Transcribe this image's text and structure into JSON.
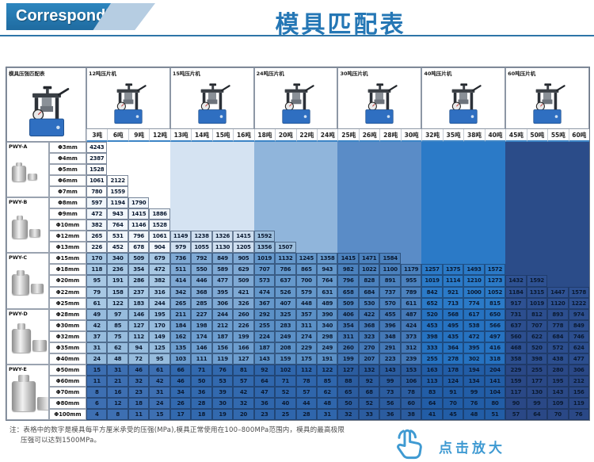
{
  "header": {
    "brand_label": "Corresponding",
    "title": "模具匹配表"
  },
  "chart_data": {
    "type": "table",
    "title": "模具匹配表",
    "unit": "MPa",
    "corner_title": "模具压强匹配表",
    "machines": [
      {
        "name": "12吨压片机",
        "tons": [
          "3吨",
          "6吨",
          "9吨",
          "12吨"
        ]
      },
      {
        "name": "15吨压片机",
        "tons": [
          "13吨",
          "14吨",
          "15吨",
          "16吨"
        ]
      },
      {
        "name": "24吨压片机",
        "tons": [
          "18吨",
          "20吨",
          "22吨",
          "24吨"
        ]
      },
      {
        "name": "30吨压片机",
        "tons": [
          "25吨",
          "26吨",
          "28吨",
          "30吨"
        ]
      },
      {
        "name": "40吨压片机",
        "tons": [
          "32吨",
          "35吨",
          "38吨",
          "40吨"
        ]
      },
      {
        "name": "60吨压片机",
        "tons": [
          "45吨",
          "50吨",
          "55吨",
          "60吨"
        ]
      }
    ],
    "sections": [
      {
        "label": "PWY-A",
        "rows": [
          {
            "dia": "Φ3mm",
            "values": [
              4243
            ]
          },
          {
            "dia": "Φ4mm",
            "values": [
              2387
            ]
          },
          {
            "dia": "Φ5mm",
            "values": [
              1528
            ]
          },
          {
            "dia": "Φ6mm",
            "values": [
              1061,
              2122
            ]
          },
          {
            "dia": "Φ7mm",
            "values": [
              780,
              1559
            ]
          }
        ]
      },
      {
        "label": "PWY-B",
        "rows": [
          {
            "dia": "Φ8mm",
            "values": [
              597,
              1194,
              1790
            ]
          },
          {
            "dia": "Φ9mm",
            "values": [
              472,
              943,
              1415,
              1886
            ]
          },
          {
            "dia": "Φ10mm",
            "values": [
              382,
              764,
              1146,
              1528
            ]
          },
          {
            "dia": "Φ12mm",
            "values": [
              265,
              531,
              796,
              1061,
              1149,
              1238,
              1326,
              1415,
              1592
            ]
          },
          {
            "dia": "Φ13mm",
            "values": [
              226,
              452,
              678,
              904,
              979,
              1055,
              1130,
              1205,
              1356,
              1507
            ]
          }
        ]
      },
      {
        "label": "PWY-C",
        "rows": [
          {
            "dia": "Φ15mm",
            "values": [
              170,
              340,
              509,
              679,
              736,
              792,
              849,
              905,
              1019,
              1132,
              1245,
              1358,
              1415,
              1471,
              1584
            ]
          },
          {
            "dia": "Φ18mm",
            "values": [
              118,
              236,
              354,
              472,
              511,
              550,
              589,
              629,
              707,
              786,
              865,
              943,
              982,
              1022,
              1100,
              1179,
              1257,
              1375,
              1493,
              1572
            ]
          },
          {
            "dia": "Φ20mm",
            "values": [
              95,
              191,
              286,
              382,
              414,
              446,
              477,
              509,
              573,
              637,
              700,
              764,
              796,
              828,
              891,
              955,
              1019,
              1114,
              1210,
              1273,
              1432,
              1592
            ]
          },
          {
            "dia": "Φ22mm",
            "values": [
              79,
              158,
              237,
              316,
              342,
              368,
              395,
              421,
              474,
              526,
              579,
              631,
              658,
              684,
              737,
              789,
              842,
              921,
              1000,
              1052,
              1184,
              1315,
              1447,
              1578
            ]
          },
          {
            "dia": "Φ25mm",
            "values": [
              61,
              122,
              183,
              244,
              265,
              285,
              306,
              326,
              367,
              407,
              448,
              489,
              509,
              530,
              570,
              611,
              652,
              713,
              774,
              815,
              917,
              1019,
              1120,
              1222
            ]
          }
        ]
      },
      {
        "label": "PWY-D",
        "rows": [
          {
            "dia": "Φ28mm",
            "values": [
              49,
              97,
              146,
              195,
              211,
              227,
              244,
              260,
              292,
              325,
              357,
              390,
              406,
              422,
              455,
              487,
              520,
              568,
              617,
              650,
              731,
              812,
              893,
              974
            ]
          },
          {
            "dia": "Φ30mm",
            "values": [
              42,
              85,
              127,
              170,
              184,
              198,
              212,
              226,
              255,
              283,
              311,
              340,
              354,
              368,
              396,
              424,
              453,
              495,
              538,
              566,
              637,
              707,
              778,
              849
            ]
          },
          {
            "dia": "Φ32mm",
            "values": [
              37,
              75,
              112,
              149,
              162,
              174,
              187,
              199,
              224,
              249,
              274,
              298,
              311,
              323,
              348,
              373,
              398,
              435,
              472,
              497,
              560,
              622,
              684,
              746
            ]
          },
          {
            "dia": "Φ35mm",
            "values": [
              31,
              62,
              94,
              125,
              135,
              146,
              156,
              166,
              187,
              208,
              229,
              249,
              260,
              270,
              291,
              312,
              333,
              364,
              395,
              416,
              468,
              520,
              572,
              624
            ]
          },
          {
            "dia": "Φ40mm",
            "values": [
              24,
              48,
              72,
              95,
              103,
              111,
              119,
              127,
              143,
              159,
              175,
              191,
              199,
              207,
              223,
              239,
              255,
              278,
              302,
              318,
              358,
              398,
              438,
              477
            ]
          }
        ]
      },
      {
        "label": "PWY-E",
        "rows": [
          {
            "dia": "Φ50mm",
            "values": [
              15,
              31,
              46,
              61,
              66,
              71,
              76,
              81,
              92,
              102,
              112,
              122,
              127,
              132,
              143,
              153,
              163,
              178,
              194,
              204,
              229,
              255,
              280,
              306
            ]
          },
          {
            "dia": "Φ60mm",
            "values": [
              11,
              21,
              32,
              42,
              46,
              50,
              53,
              57,
              64,
              71,
              78,
              85,
              88,
              92,
              99,
              106,
              113,
              124,
              134,
              141,
              159,
              177,
              195,
              212
            ]
          },
          {
            "dia": "Φ70mm",
            "values": [
              8,
              16,
              23,
              31,
              34,
              36,
              39,
              42,
              47,
              52,
              57,
              62,
              65,
              68,
              73,
              78,
              83,
              91,
              99,
              104,
              117,
              130,
              143,
              156
            ]
          },
          {
            "dia": "Φ80mm",
            "values": [
              6,
              12,
              18,
              24,
              26,
              28,
              30,
              32,
              36,
              40,
              44,
              48,
              50,
              52,
              56,
              60,
              64,
              70,
              76,
              80,
              90,
              99,
              109,
              119
            ]
          },
          {
            "dia": "Φ100mm",
            "values": [
              4,
              8,
              11,
              15,
              17,
              18,
              19,
              20,
              23,
              25,
              28,
              31,
              32,
              33,
              36,
              38,
              41,
              45,
              48,
              51,
              57,
              64,
              70,
              76
            ]
          }
        ]
      }
    ]
  },
  "note": {
    "line1": "注：表格中的数字是模具每平方厘米承受的压强(MPa),模具正常使用在100–800MPa范围内，模具的最高极限",
    "line2": "压强可以达到1500MPa。"
  },
  "zoom_hint": {
    "label": "点击放大"
  },
  "colors": {
    "banner_dark": "#2577ad",
    "banner_light": "#b6cde2",
    "title_blue": "#2577b5",
    "rule_blue": "#2e75a8",
    "machine_base": "#2f6fc1",
    "zoom_blue": "#3f9ad2",
    "cell_text": "#0a1930",
    "empty_groups": [
      "#ffffff",
      "#d5e3f2",
      "#90b5db",
      "#5a8cc7",
      "#2b7ac7",
      "#2b4c89"
    ],
    "filled_groups": {
      "PWY-A": [
        "#ffffff",
        "#d5e3f2",
        "#90b5db",
        "#5a8cc7",
        "#2b7ac7",
        "#2b4c89"
      ],
      "PWY-B": [
        "#f1f6fb",
        "#cfdff0",
        "#9cbedd",
        "#5a8cc7",
        "#2b7ac7",
        "#2b4c89"
      ],
      "PWY-C": [
        "#a8c8e4",
        "#7fa9d4",
        "#6598cb",
        "#4b81bd",
        "#2b7ac7",
        "#2e5192"
      ],
      "PWY-D": [
        "#97bcdd",
        "#6e9ecf",
        "#5b90c6",
        "#4478b6",
        "#2672c0",
        "#2c4e8e"
      ],
      "PWY-E": [
        "#3d6fb2",
        "#3269ae",
        "#2f66ac",
        "#2b5c9f",
        "#225da6",
        "#2a4886"
      ]
    }
  }
}
